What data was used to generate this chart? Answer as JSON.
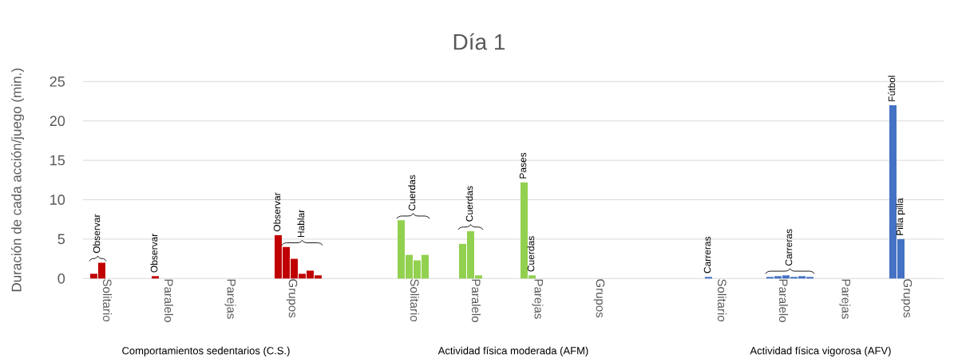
{
  "chart_data": {
    "type": "bar",
    "title": "Día 1",
    "ylabel": "Duración de cada acción/juego (min.)",
    "categories": [
      "Solitario",
      "Paralelo",
      "Parejas",
      "Grupos",
      null,
      "Solitario",
      "Paralelo",
      "Parejas",
      "Grupos",
      null,
      "Solitario",
      "Paralelo",
      "Parejas",
      "Grupos"
    ],
    "series": [
      {
        "values": [
          0.6,
          0.3,
          null,
          5.5,
          null,
          7.4,
          4.4,
          12.2,
          null,
          null,
          0.2,
          0.2,
          null,
          22
        ],
        "colors": [
          "#c00000",
          "#c00000",
          null,
          "#c00000",
          null,
          "#92d050",
          "#92d050",
          "#92d050",
          null,
          null,
          "#4472c4",
          "#4472c4",
          null,
          "#4472c4"
        ],
        "value_labels": [
          "Observar",
          "Observar",
          null,
          "Observar",
          null,
          "Cuerdas",
          null,
          "Pases",
          null,
          null,
          "Carreras",
          null,
          null,
          "Fútbol"
        ]
      },
      {
        "values": [
          2,
          null,
          null,
          4,
          null,
          3,
          6,
          0.4,
          null,
          null,
          null,
          0.3,
          null,
          5
        ],
        "colors": [
          "#c00000",
          null,
          null,
          "#c00000",
          null,
          "#92d050",
          "#92d050",
          "#92d050",
          null,
          null,
          null,
          "#4472c4",
          null,
          "#4472c4"
        ],
        "value_labels": [
          null,
          null,
          null,
          null,
          null,
          null,
          "Cuerdas",
          "Cuerdas",
          null,
          null,
          null,
          null,
          null,
          "Pilla pilla"
        ]
      },
      {
        "values": [
          null,
          null,
          null,
          2.5,
          null,
          2.3,
          0.4,
          null,
          null,
          null,
          null,
          0.4,
          null,
          null
        ],
        "colors": [
          null,
          null,
          null,
          "#c00000",
          null,
          "#92d050",
          "#92d050",
          null,
          null,
          null,
          null,
          "#4472c4",
          null,
          null
        ],
        "value_labels": [
          null,
          null,
          null,
          "Hablar",
          null,
          null,
          null,
          null,
          null,
          null,
          null,
          "Carreras",
          null,
          null
        ]
      },
      {
        "values": [
          null,
          null,
          null,
          0.6,
          null,
          3,
          null,
          null,
          null,
          null,
          null,
          0.2,
          null,
          null
        ],
        "colors": [
          null,
          null,
          null,
          "#c00000",
          null,
          "#92d050",
          null,
          null,
          null,
          null,
          null,
          "#4472c4",
          null,
          null
        ]
      },
      {
        "values": [
          null,
          null,
          null,
          1,
          null,
          null,
          null,
          null,
          null,
          null,
          null,
          0.3,
          null,
          null
        ],
        "colors": [
          null,
          null,
          null,
          "#c00000",
          null,
          null,
          null,
          null,
          null,
          null,
          null,
          "#4472c4",
          null,
          null
        ]
      },
      {
        "values": [
          null,
          null,
          null,
          0.4,
          null,
          null,
          null,
          null,
          null,
          null,
          null,
          0.2,
          null,
          null
        ],
        "colors": [
          null,
          null,
          null,
          "#c00000",
          null,
          null,
          null,
          null,
          null,
          null,
          null,
          "#4472c4",
          null,
          null
        ]
      }
    ],
    "ylim": [
      0,
      25
    ],
    "yticks": [
      0,
      5,
      10,
      15,
      20,
      25
    ],
    "grid": "y",
    "annotations": [
      "Comportamientos sedentarios (C.S.)",
      "Actividad física moderada (AFM)",
      "Actividad física vigorosa (AFV)"
    ]
  }
}
